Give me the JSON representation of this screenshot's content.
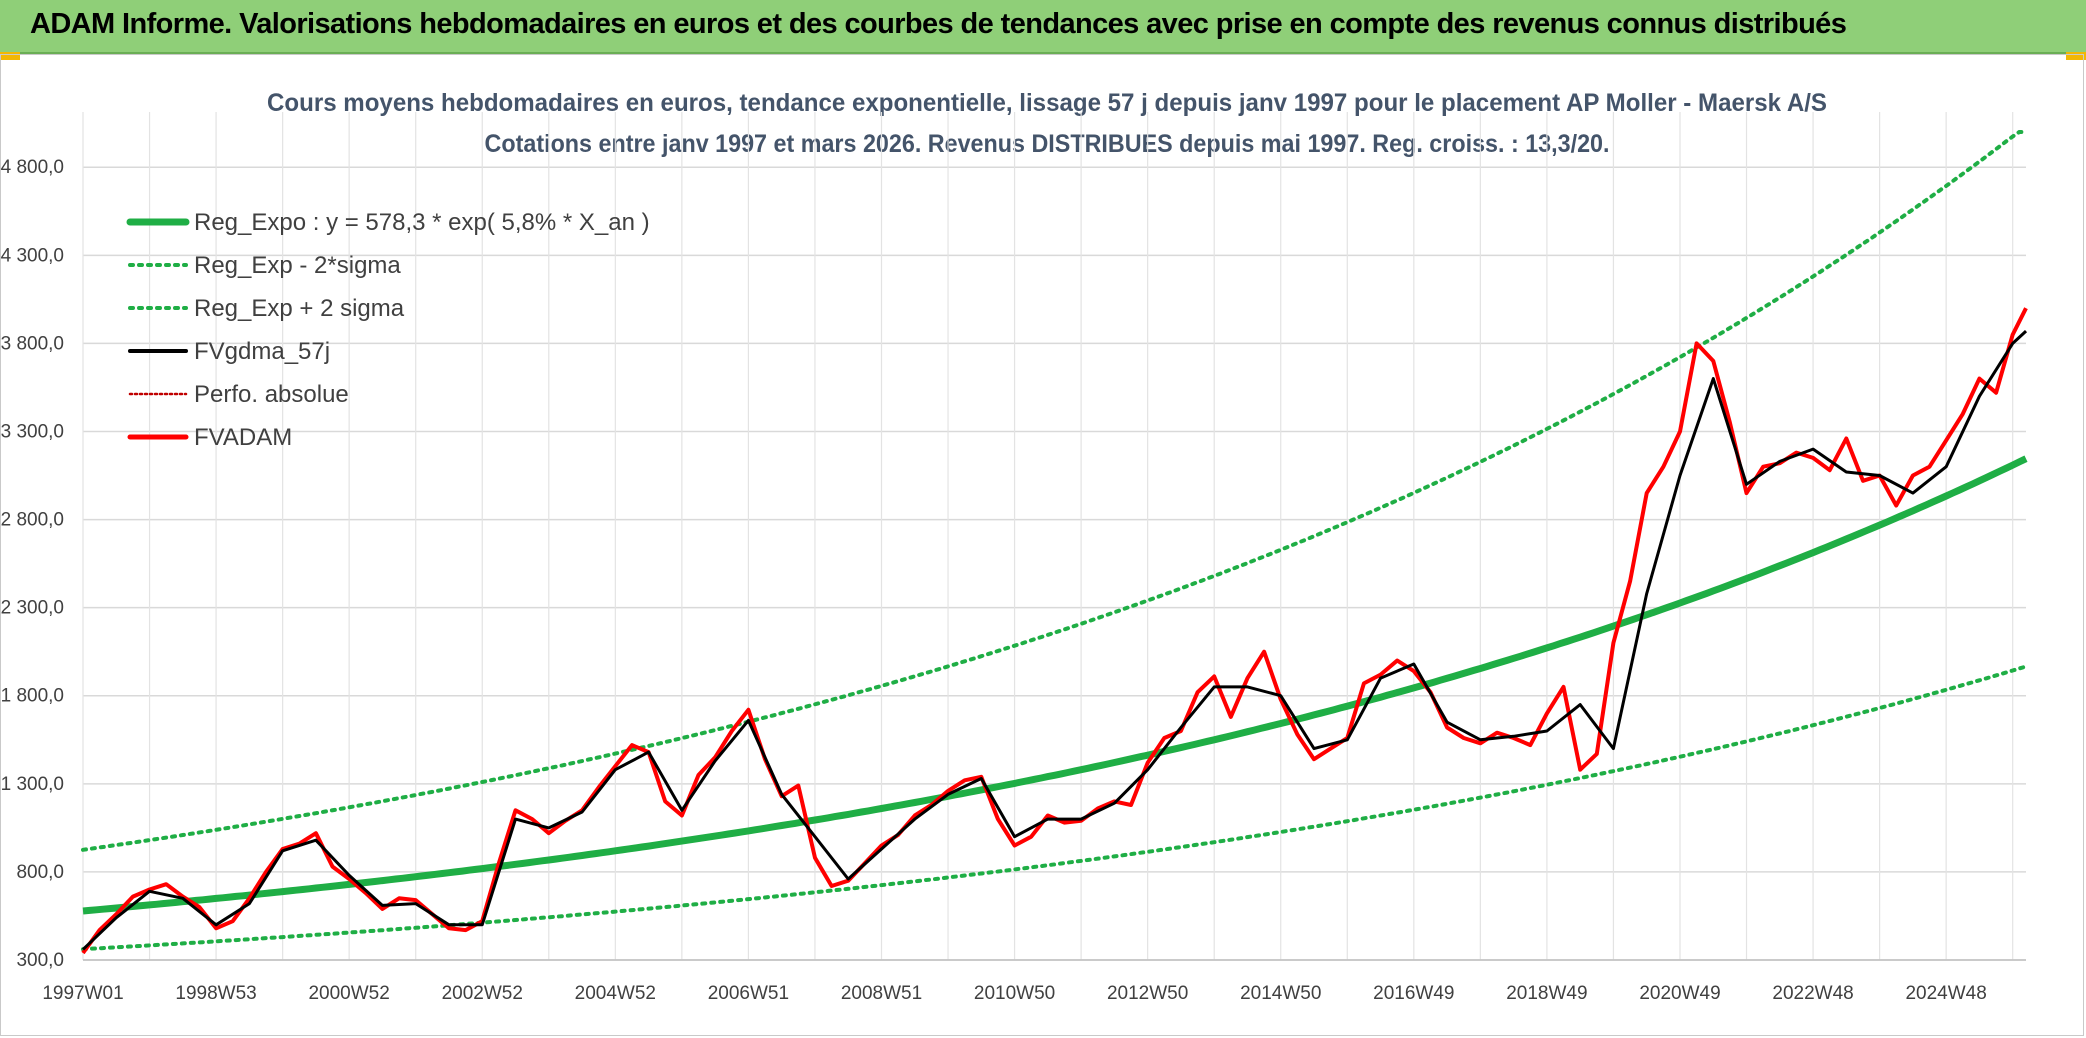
{
  "header": {
    "title": "ADAM Informe. Valorisations hebdomadaires en euros et des courbes de tendances avec prise en compte des revenus connus distribués"
  },
  "colors": {
    "banner": "#8fcf78",
    "reg": "#1fae45",
    "fvadam": "#ff0000",
    "gdma": "#000000",
    "perfo": "#c00000"
  },
  "chart_data": {
    "type": "line",
    "title": "Cours moyens hebdomadaires en euros, tendance exponentielle, lissage 57 j depuis janv 1997 pour le placement AP Moller - Maersk A/S",
    "subtitle": "Cotations entre janv 1997 et mars 2026. Revenus DISTRIBUES depuis mai 1997. Reg. croiss. : 13,3/20.",
    "ylim": [
      300,
      5000
    ],
    "xlim": [
      1997.0,
      2026.2
    ],
    "grid": true,
    "y_ticks": [
      "300,0",
      "800,0",
      "1 300,0",
      "1 800,0",
      "2 300,0",
      "2 800,0",
      "3 300,0",
      "3 800,0",
      "4 300,0",
      "4 800,0"
    ],
    "y_tick_values": [
      300,
      800,
      1300,
      1800,
      2300,
      2800,
      3300,
      3800,
      4300,
      4800
    ],
    "x_ticks": [
      "1997W01",
      "1998W53",
      "2000W52",
      "2002W52",
      "2004W52",
      "2006W51",
      "2008W51",
      "2010W50",
      "2012W50",
      "2014W50",
      "2016W49",
      "2018W49",
      "2020W49",
      "2022W48",
      "2024W48"
    ],
    "x_tick_values": [
      1997.0,
      1999.0,
      2001.0,
      2003.0,
      2005.0,
      2007.0,
      2009.0,
      2011.0,
      2013.0,
      2015.0,
      2017.0,
      2019.0,
      2021.0,
      2023.0,
      2025.0
    ],
    "legend": [
      {
        "name": "Reg_Expo : y = 578,3 * exp( 5,8% *  X_an )",
        "style": "reg"
      },
      {
        "name": "Reg_Exp - 2*sigma",
        "style": "lower"
      },
      {
        "name": "Reg_Exp + 2 sigma",
        "style": "upper"
      },
      {
        "name": "FVgdma_57j",
        "style": "gdma"
      },
      {
        "name": "Perfo. absolue",
        "style": "perfo"
      },
      {
        "name": "FVADAM",
        "style": "fvadam"
      }
    ],
    "legend_position": "top-left",
    "regression": {
      "a": 578.3,
      "rate": 0.058,
      "upper_factor": 1.6,
      "lower_factor": 0.625,
      "upper_cap": 5000
    },
    "series": [
      {
        "name": "FVADAM",
        "x": [
          1997.0,
          1997.25,
          1997.5,
          1997.75,
          1998.0,
          1998.25,
          1998.5,
          1998.75,
          1999.0,
          1999.25,
          1999.5,
          1999.75,
          2000.0,
          2000.25,
          2000.5,
          2000.75,
          2001.0,
          2001.25,
          2001.5,
          2001.75,
          2002.0,
          2002.25,
          2002.5,
          2002.75,
          2003.0,
          2003.25,
          2003.5,
          2003.75,
          2004.0,
          2004.25,
          2004.5,
          2004.75,
          2005.0,
          2005.25,
          2005.5,
          2005.75,
          2006.0,
          2006.25,
          2006.5,
          2006.75,
          2007.0,
          2007.25,
          2007.5,
          2007.75,
          2008.0,
          2008.25,
          2008.5,
          2008.75,
          2009.0,
          2009.25,
          2009.5,
          2009.75,
          2010.0,
          2010.25,
          2010.5,
          2010.75,
          2011.0,
          2011.25,
          2011.5,
          2011.75,
          2012.0,
          2012.25,
          2012.5,
          2012.75,
          2013.0,
          2013.25,
          2013.5,
          2013.75,
          2014.0,
          2014.25,
          2014.5,
          2014.75,
          2015.0,
          2015.25,
          2015.5,
          2015.75,
          2016.0,
          2016.25,
          2016.5,
          2016.75,
          2017.0,
          2017.25,
          2017.5,
          2017.75,
          2018.0,
          2018.25,
          2018.5,
          2018.75,
          2019.0,
          2019.25,
          2019.5,
          2019.75,
          2020.0,
          2020.25,
          2020.5,
          2020.75,
          2021.0,
          2021.25,
          2021.5,
          2021.75,
          2022.0,
          2022.25,
          2022.5,
          2022.75,
          2023.0,
          2023.25,
          2023.5,
          2023.75,
          2024.0,
          2024.25,
          2024.5,
          2024.75,
          2025.0,
          2025.25,
          2025.5,
          2025.75,
          2026.0,
          2026.2
        ],
        "values": [
          340,
          470,
          560,
          660,
          700,
          730,
          660,
          600,
          480,
          520,
          650,
          800,
          930,
          960,
          1020,
          830,
          760,
          680,
          590,
          650,
          640,
          560,
          480,
          470,
          520,
          850,
          1150,
          1100,
          1020,
          1090,
          1150,
          1280,
          1400,
          1520,
          1480,
          1200,
          1120,
          1350,
          1450,
          1600,
          1720,
          1440,
          1230,
          1290,
          880,
          720,
          750,
          850,
          950,
          1010,
          1120,
          1180,
          1260,
          1320,
          1340,
          1100,
          950,
          1000,
          1120,
          1080,
          1090,
          1160,
          1200,
          1180,
          1420,
          1560,
          1600,
          1820,
          1910,
          1680,
          1900,
          2050,
          1780,
          1580,
          1440,
          1500,
          1560,
          1870,
          1920,
          2000,
          1940,
          1820,
          1620,
          1560,
          1530,
          1590,
          1560,
          1520,
          1700,
          1850,
          1380,
          1470,
          2100,
          2450,
          2950,
          3100,
          3300,
          3800,
          3700,
          3350,
          2950,
          3100,
          3120,
          3180,
          3150,
          3080,
          3260,
          3020,
          3050,
          2880,
          3050,
          3100,
          3250,
          3400,
          3600,
          3520,
          3850,
          4000
        ]
      },
      {
        "name": "FVgdma_57j",
        "x": [
          1997.0,
          1997.5,
          1998.0,
          1998.5,
          1999.0,
          1999.5,
          2000.0,
          2000.5,
          2001.0,
          2001.5,
          2002.0,
          2002.5,
          2003.0,
          2003.5,
          2004.0,
          2004.5,
          2005.0,
          2005.5,
          2006.0,
          2006.5,
          2007.0,
          2007.5,
          2008.0,
          2008.5,
          2009.0,
          2009.5,
          2010.0,
          2010.5,
          2011.0,
          2011.5,
          2012.0,
          2012.5,
          2013.0,
          2013.5,
          2014.0,
          2014.5,
          2015.0,
          2015.5,
          2016.0,
          2016.5,
          2017.0,
          2017.5,
          2018.0,
          2018.5,
          2019.0,
          2019.5,
          2020.0,
          2020.5,
          2021.0,
          2021.5,
          2022.0,
          2022.5,
          2023.0,
          2023.5,
          2024.0,
          2024.5,
          2025.0,
          2025.5,
          2026.0,
          2026.2
        ],
        "values": [
          360,
          540,
          690,
          650,
          500,
          620,
          920,
          980,
          780,
          610,
          620,
          500,
          500,
          1100,
          1050,
          1140,
          1380,
          1480,
          1150,
          1430,
          1660,
          1240,
          1000,
          760,
          930,
          1100,
          1240,
          1330,
          1000,
          1100,
          1100,
          1190,
          1380,
          1620,
          1850,
          1850,
          1800,
          1500,
          1550,
          1900,
          1980,
          1650,
          1550,
          1570,
          1600,
          1750,
          1500,
          2380,
          3050,
          3600,
          3000,
          3130,
          3200,
          3070,
          3050,
          2950,
          3100,
          3500,
          3800,
          3870
        ]
      },
      {
        "name": "Perfo. absolue",
        "x": [
          1997.0,
          1997.5,
          1998.0,
          1998.5,
          1999.0,
          1999.5,
          2000.0,
          2000.5,
          2001.0,
          2001.5,
          2002.0,
          2002.5,
          2003.0,
          2003.5,
          2004.0,
          2004.5,
          2005.0,
          2005.5,
          2006.0,
          2006.5,
          2007.0,
          2007.5,
          2008.0,
          2008.5,
          2009.0,
          2009.5,
          2010.0,
          2010.5,
          2011.0,
          2011.5,
          2012.0,
          2012.5,
          2013.0,
          2013.5,
          2014.0,
          2014.5,
          2015.0,
          2015.5,
          2016.0,
          2016.5,
          2017.0,
          2017.5,
          2018.0,
          2018.5,
          2019.0,
          2019.5,
          2020.0,
          2020.5,
          2021.0,
          2021.5,
          2022.0,
          2022.5,
          2023.0,
          2023.5,
          2024.0,
          2024.5,
          2025.0,
          2025.5,
          2026.0,
          2026.2
        ],
        "values": [
          360,
          540,
          690,
          650,
          500,
          620,
          920,
          980,
          780,
          610,
          620,
          500,
          500,
          1100,
          1050,
          1140,
          1380,
          1480,
          1150,
          1430,
          1660,
          1240,
          1000,
          760,
          930,
          1100,
          1240,
          1330,
          1000,
          1100,
          1100,
          1190,
          1380,
          1620,
          1850,
          1850,
          1800,
          1500,
          1550,
          1900,
          1980,
          1650,
          1550,
          1570,
          1600,
          1750,
          1500,
          2380,
          3050,
          3600,
          3000,
          3130,
          3200,
          3070,
          3050,
          2950,
          3100,
          3500,
          3800,
          3870
        ]
      }
    ]
  }
}
